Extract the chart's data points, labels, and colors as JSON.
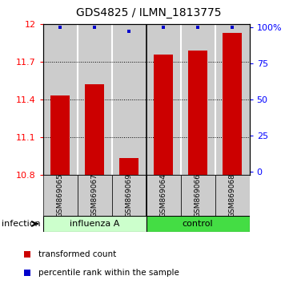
{
  "title": "GDS4825 / ILMN_1813775",
  "categories": [
    "GSM869065",
    "GSM869067",
    "GSM869069",
    "GSM869064",
    "GSM869066",
    "GSM869068"
  ],
  "red_values": [
    11.43,
    11.52,
    10.93,
    11.76,
    11.79,
    11.93
  ],
  "blue_values": [
    100,
    100,
    97,
    100,
    100,
    100
  ],
  "ylim": [
    10.8,
    12.0
  ],
  "yticks_left": [
    10.8,
    11.1,
    11.4,
    11.7,
    12.0
  ],
  "yticks_right": [
    0,
    25,
    50,
    75,
    100
  ],
  "ytick_labels_left": [
    "10.8",
    "11.1",
    "11.4",
    "11.7",
    "12"
  ],
  "ytick_labels_right": [
    "0",
    "25",
    "50",
    "75",
    "100%"
  ],
  "group1_label": "influenza A",
  "group2_label": "control",
  "factor_label": "infection",
  "legend_red": "transformed count",
  "legend_blue": "percentile rank within the sample",
  "bar_color": "#cc0000",
  "dot_color": "#0000cc",
  "group1_bg": "#ccffcc",
  "group2_bg": "#44dd44",
  "bar_bg": "#cccccc",
  "white_bg": "#ffffff",
  "tick_fontsize": 8,
  "cat_fontsize": 6.5,
  "label_fontsize": 8,
  "legend_fontsize": 7.5,
  "title_fontsize": 10
}
